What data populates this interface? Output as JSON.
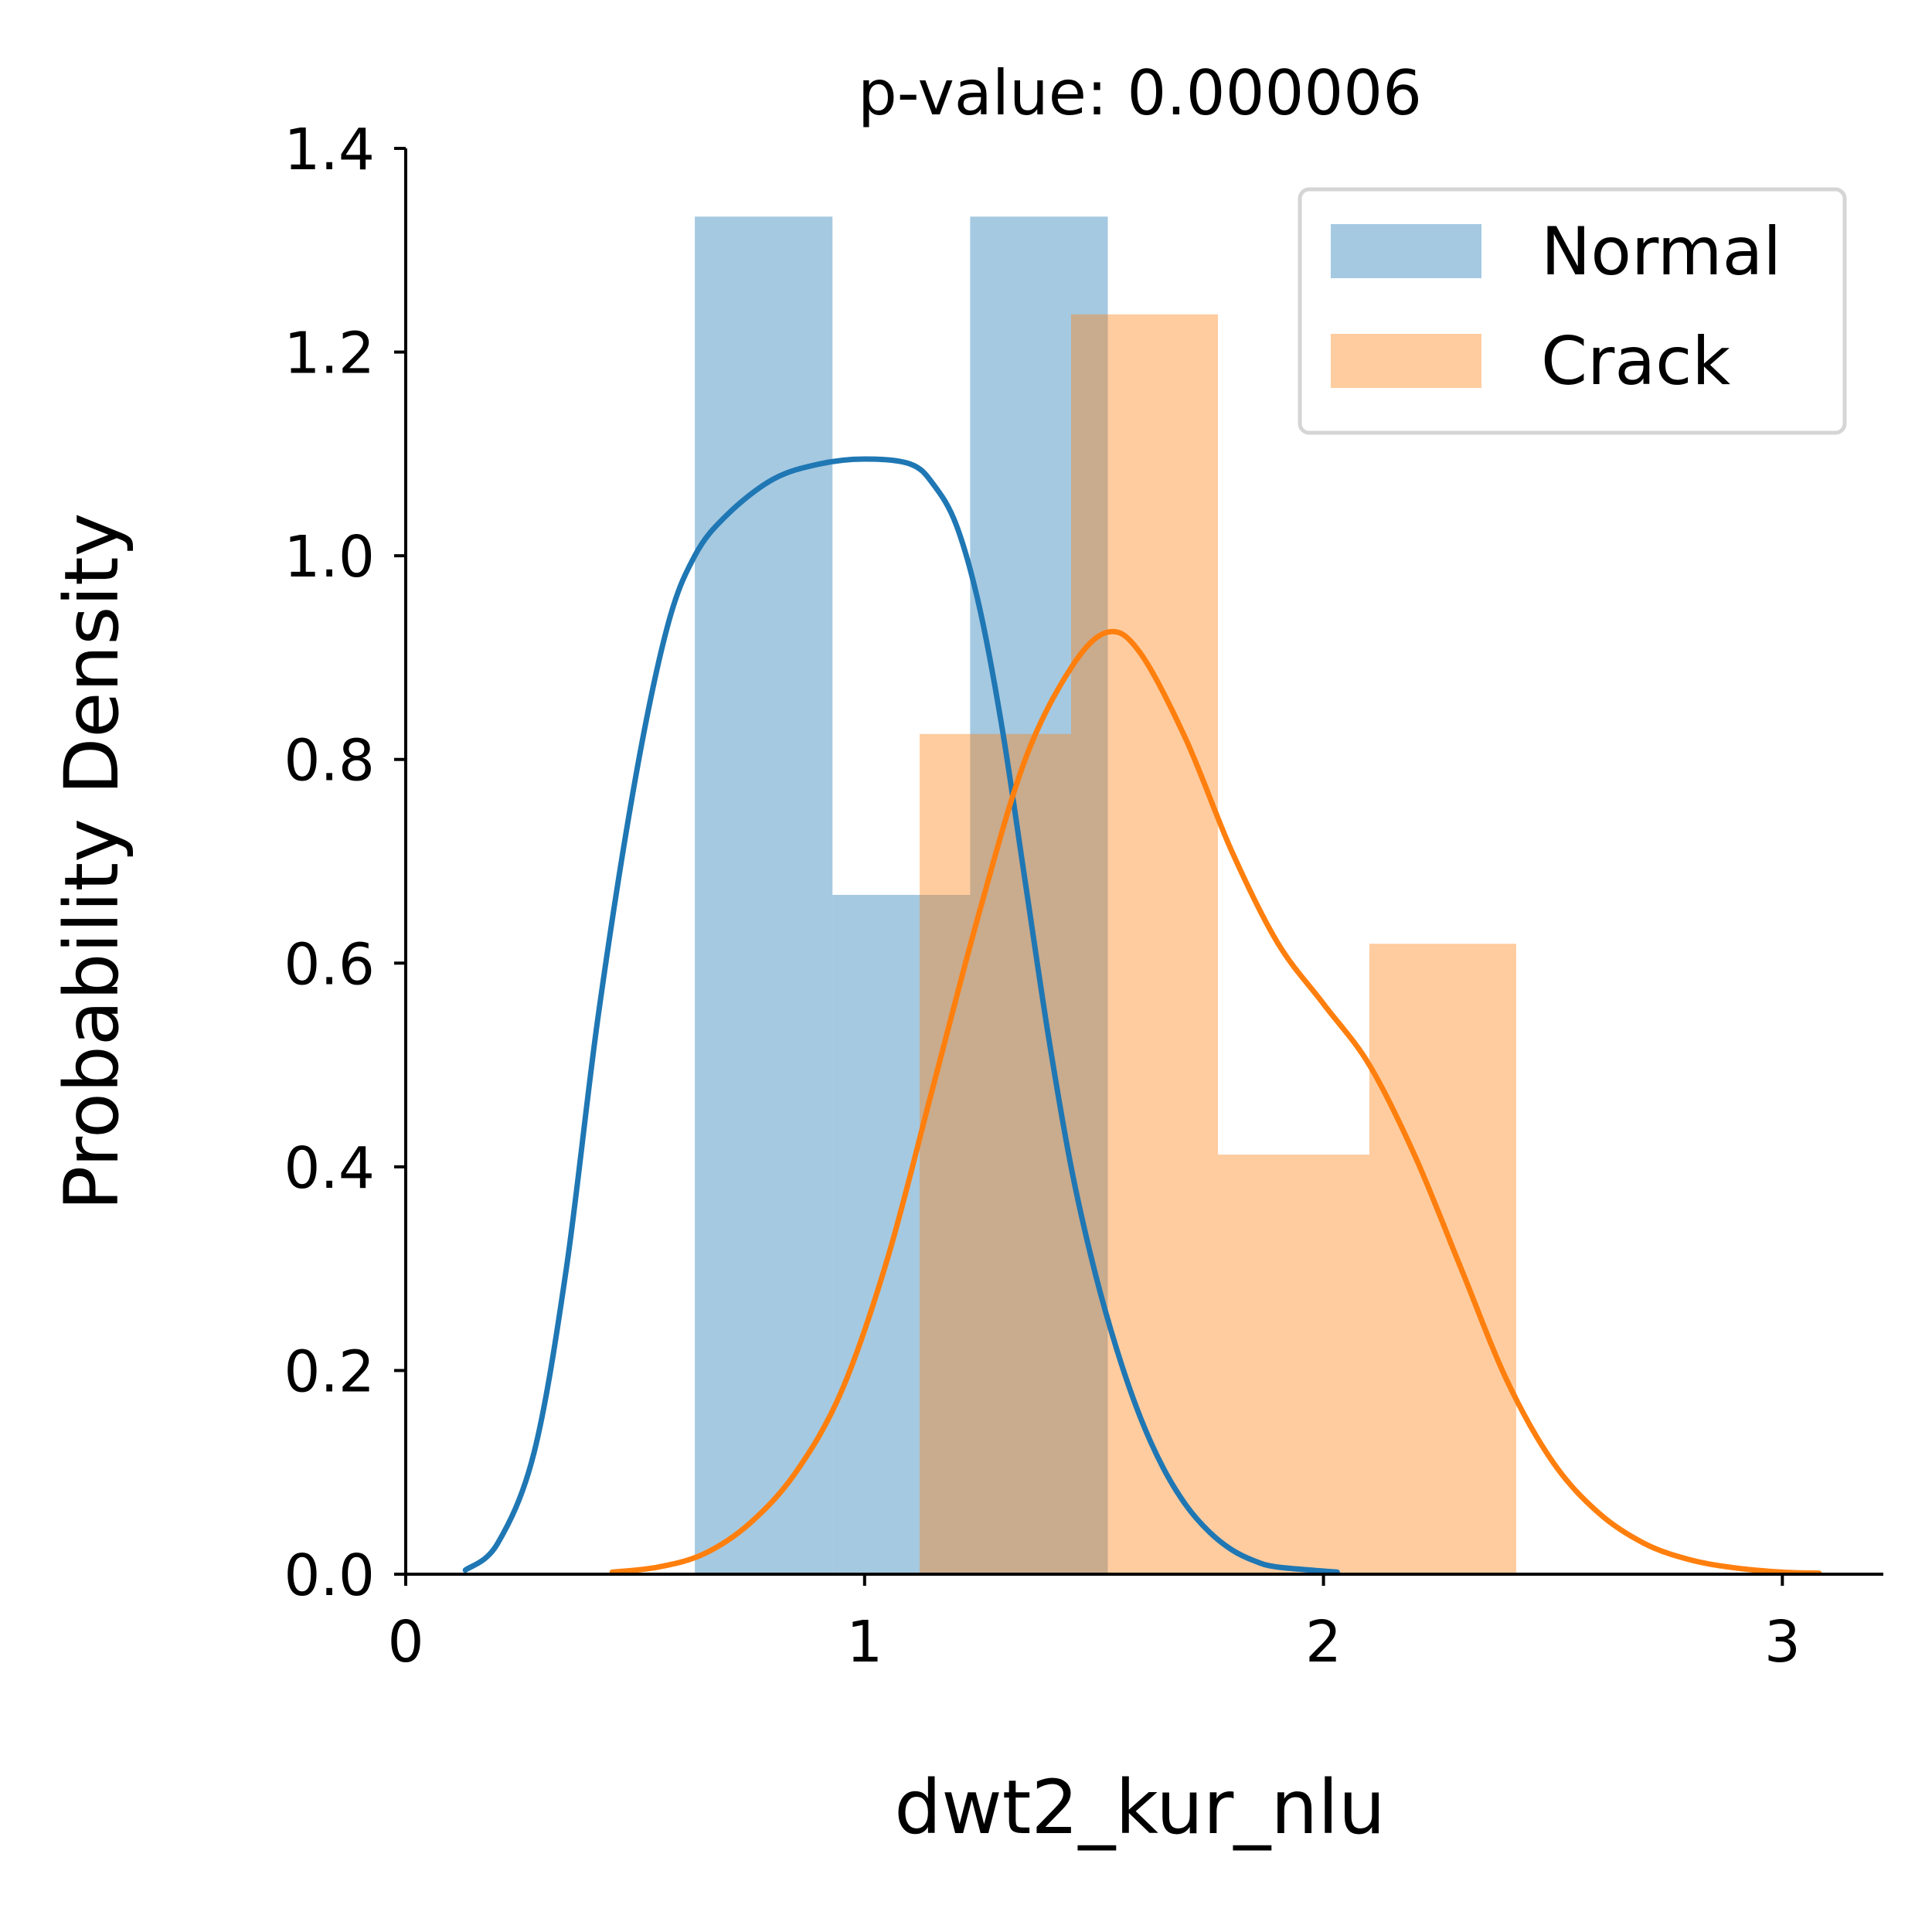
{
  "chart_data": {
    "type": "bar",
    "title": "p-value: 0.000006",
    "xlabel": "dwt2_kur_nlu",
    "ylabel": "Probability Density",
    "xlim": [
      0,
      3.22
    ],
    "ylim": [
      0,
      1.4
    ],
    "x_ticks": [
      0,
      1,
      2,
      3
    ],
    "x_tick_labels": [
      "0",
      "1",
      "2",
      "3"
    ],
    "y_ticks": [
      0.0,
      0.2,
      0.4,
      0.6,
      0.8,
      1.0,
      1.2,
      1.4
    ],
    "y_tick_labels": [
      "0.0",
      "0.2",
      "0.4",
      "0.6",
      "0.8",
      "1.0",
      "1.2",
      "1.4"
    ],
    "grid": false,
    "legend_position": "top-right",
    "series": [
      {
        "name": "Normal",
        "color": "#1f77b4",
        "bar_opacity": 0.4,
        "histogram": [
          {
            "x0": 0.63,
            "x1": 0.93,
            "density": 1.333
          },
          {
            "x0": 0.93,
            "x1": 1.23,
            "density": 0.667
          },
          {
            "x0": 1.23,
            "x1": 1.53,
            "density": 1.333
          }
        ],
        "kde": {
          "x": [
            0.13,
            0.2,
            0.28,
            0.35,
            0.42,
            0.5,
            0.57,
            0.63,
            0.7,
            0.8,
            0.9,
            1.0,
            1.1,
            1.15,
            1.2,
            1.25,
            1.3,
            1.35,
            1.4,
            1.45,
            1.5,
            1.55,
            1.6,
            1.65,
            1.7,
            1.75,
            1.8,
            1.85,
            1.9,
            2.03
          ],
          "y": [
            0.004,
            0.03,
            0.12,
            0.3,
            0.55,
            0.78,
            0.93,
            1.0,
            1.04,
            1.075,
            1.09,
            1.095,
            1.09,
            1.07,
            1.03,
            0.95,
            0.83,
            0.68,
            0.53,
            0.4,
            0.3,
            0.22,
            0.155,
            0.105,
            0.068,
            0.042,
            0.024,
            0.013,
            0.007,
            0.002
          ]
        }
      },
      {
        "name": "Crack",
        "color": "#ff7f0e",
        "bar_opacity": 0.4,
        "histogram": [
          {
            "x0": 1.12,
            "x1": 1.45,
            "density": 0.825
          },
          {
            "x0": 1.45,
            "x1": 1.77,
            "density": 1.237
          },
          {
            "x0": 1.77,
            "x1": 2.1,
            "density": 0.412
          },
          {
            "x0": 2.1,
            "x1": 2.42,
            "density": 0.619
          }
        ],
        "kde": {
          "x": [
            0.45,
            0.55,
            0.65,
            0.75,
            0.85,
            0.95,
            1.05,
            1.15,
            1.25,
            1.35,
            1.45,
            1.53,
            1.6,
            1.7,
            1.8,
            1.9,
            2.0,
            2.1,
            2.2,
            2.3,
            2.4,
            2.5,
            2.6,
            2.7,
            2.8,
            2.9,
            3.0,
            3.08
          ],
          "y": [
            0.002,
            0.007,
            0.02,
            0.05,
            0.1,
            0.18,
            0.31,
            0.48,
            0.65,
            0.8,
            0.89,
            0.925,
            0.905,
            0.82,
            0.71,
            0.62,
            0.56,
            0.5,
            0.41,
            0.3,
            0.19,
            0.11,
            0.06,
            0.03,
            0.014,
            0.006,
            0.002,
            0.001
          ]
        }
      }
    ]
  }
}
